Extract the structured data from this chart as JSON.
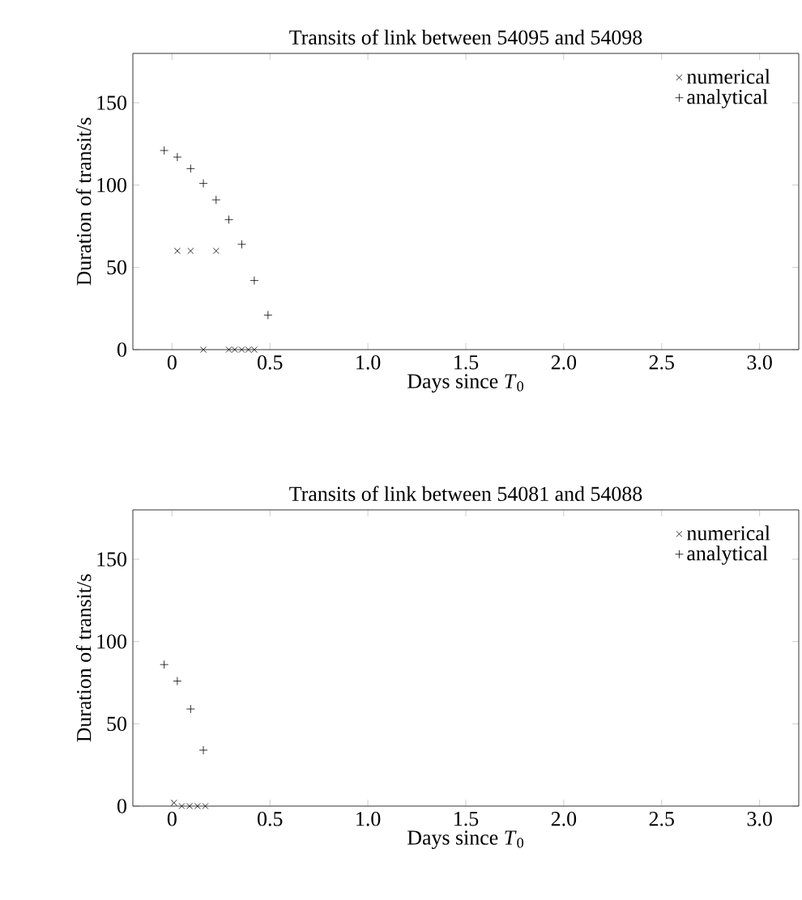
{
  "chart_data": [
    {
      "type": "scatter",
      "title": "Transits of link between 54095 and 54098",
      "xlabel": "Days since *T*$_{0}$",
      "ylabel": "Duration of transit/s",
      "xlim": [
        -0.2,
        3.2
      ],
      "ylim": [
        0,
        180
      ],
      "xticks": [
        0,
        0.5,
        {
          "value": 1,
          "label": "1.0"
        },
        1.5,
        {
          "value": 2,
          "label": "2.0"
        },
        2.5,
        {
          "value": 3,
          "label": "3.0"
        }
      ],
      "yticks": [
        0,
        50,
        100,
        150
      ],
      "legend": "top right",
      "grid": false,
      "series": [
        {
          "name": "numerical",
          "color": "#000000",
          "marker": "cross",
          "x": [
            0.027,
            0.095,
            0.225,
            0.16,
            0.29,
            0.32,
            0.356,
            0.39,
            0.42
          ],
          "values": [
            60,
            60,
            60,
            0,
            0,
            0,
            0,
            0,
            0
          ]
        },
        {
          "name": "analytical",
          "color": "#000000",
          "marker": "plus",
          "x": [
            -0.04,
            0.027,
            0.095,
            0.16,
            0.225,
            0.29,
            0.356,
            0.42,
            0.49
          ],
          "values": [
            121,
            117,
            110,
            101,
            91,
            79,
            64,
            42,
            21
          ]
        }
      ]
    },
    {
      "type": "scatter",
      "title": "Transits of link between 54081 and 54088",
      "xlabel": "Days since *T*$_{0}$",
      "ylabel": "Duration of transit/s",
      "xlim": [
        -0.2,
        3.2
      ],
      "ylim": [
        0,
        180
      ],
      "xticks": [
        0,
        0.5,
        {
          "value": 1,
          "label": "1.0"
        },
        1.5,
        {
          "value": 2,
          "label": "2.0"
        },
        2.5,
        {
          "value": 3,
          "label": "3.0"
        }
      ],
      "yticks": [
        0,
        50,
        100,
        150
      ],
      "legend": "top right",
      "grid": false,
      "series": [
        {
          "name": "numerical",
          "color": "#000000",
          "marker": "cross",
          "x": [
            0.01,
            0.05,
            0.09,
            0.13,
            0.17
          ],
          "values": [
            2,
            0,
            0,
            0,
            0
          ]
        },
        {
          "name": "analytical",
          "color": "#000000",
          "marker": "plus",
          "x": [
            -0.04,
            0.027,
            0.095,
            0.16
          ],
          "values": [
            86,
            76,
            59,
            34
          ]
        }
      ]
    }
  ]
}
